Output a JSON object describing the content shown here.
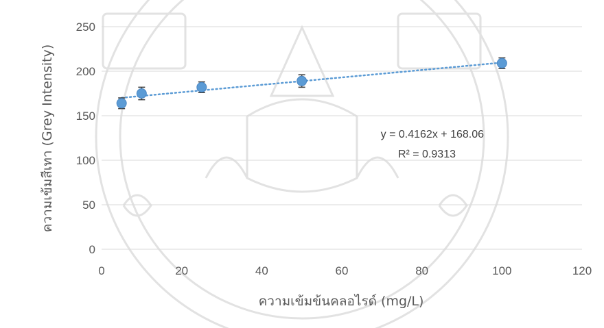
{
  "chart_data": {
    "type": "scatter",
    "xlabel": "ความเข้มข้นคลอไรด์ (mg/L)",
    "ylabel": "ความเข้มสีเทา (Grey Intensity)",
    "xlim": [
      0,
      120
    ],
    "ylim": [
      0,
      250
    ],
    "x_ticks": [
      "0",
      "20",
      "40",
      "60",
      "80",
      "100",
      "120"
    ],
    "y_ticks": [
      "0",
      "50",
      "100",
      "150",
      "200",
      "250"
    ],
    "grid": true,
    "points": [
      {
        "x": 5,
        "y": 164,
        "err": 6
      },
      {
        "x": 10,
        "y": 175,
        "err": 7
      },
      {
        "x": 25,
        "y": 182,
        "err": 6
      },
      {
        "x": 50,
        "y": 189,
        "err": 7
      },
      {
        "x": 100,
        "y": 209,
        "err": 6
      }
    ],
    "trendline": {
      "type": "linear",
      "slope": 0.4162,
      "intercept": 168.06,
      "x_range": [
        5,
        100
      ]
    },
    "annotations": [
      "y = 0.4162x + 168.06",
      "R² = 0.9313"
    ],
    "colors": {
      "marker": "#5b9bd5",
      "trendline": "#5b9bd5",
      "error_bar": "#404040",
      "grid": "#d9d9d9",
      "text": "#595959"
    },
    "background": "faded institutional seal watermark"
  }
}
